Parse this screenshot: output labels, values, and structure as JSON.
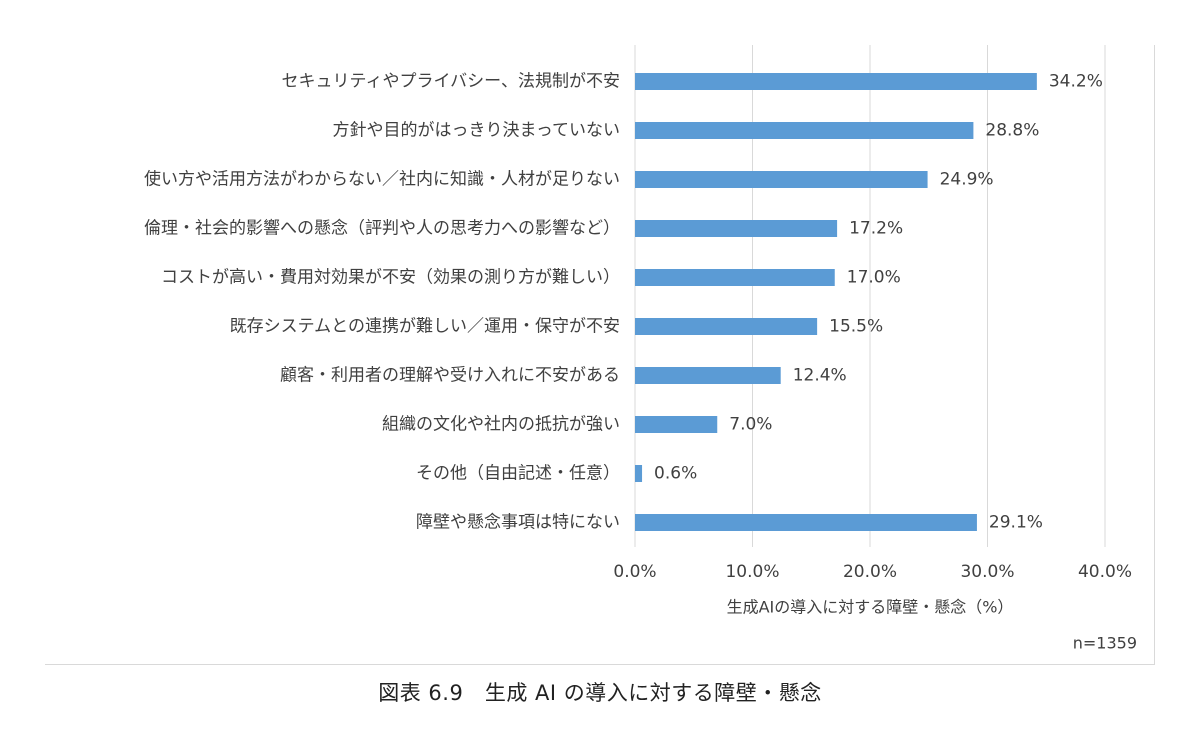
{
  "chart_data": {
    "type": "bar",
    "orientation": "horizontal",
    "categories": [
      "セキュリティやプライバシー、法規制が不安",
      "方針や目的がはっきり決まっていない",
      "使い方や活用方法がわからない／社内に知識・人材が足りない",
      "倫理・社会的影響への懸念（評判や人の思考力への影響など）",
      "コストが高い・費用対効果が不安（効果の測り方が難しい）",
      "既存システムとの連携が難しい／運用・保守が不安",
      "顧客・利用者の理解や受け入れに不安がある",
      "組織の文化や社内の抵抗が強い",
      "その他（自由記述・任意）",
      "障壁や懸念事項は特にない"
    ],
    "values": [
      34.2,
      28.8,
      24.9,
      17.2,
      17.0,
      15.5,
      12.4,
      7.0,
      0.6,
      29.1
    ],
    "value_labels": [
      "34.2%",
      "28.8%",
      "24.9%",
      "17.2%",
      "17.0%",
      "15.5%",
      "12.4%",
      "7.0%",
      "0.6%",
      "29.1%"
    ],
    "xlim": [
      0,
      40
    ],
    "x_ticks": [
      "0.0%",
      "10.0%",
      "20.0%",
      "30.0%",
      "40.0%"
    ],
    "xlabel": "生成AIの導入に対する障壁・懸念（%）",
    "note": "n=1359",
    "grid": true,
    "bar_color": "#5b9bd5"
  },
  "caption": "図表 6.9　生成 AI の導入に対する障壁・懸念"
}
